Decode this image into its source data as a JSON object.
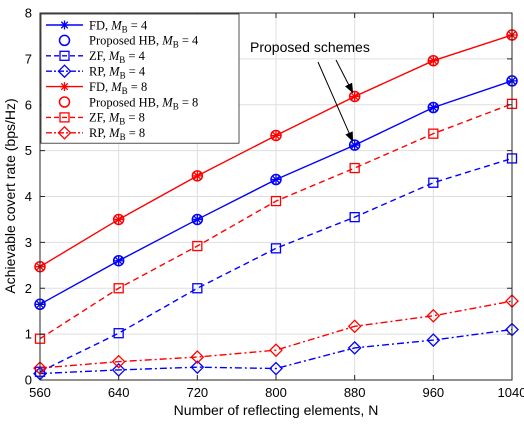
{
  "chart_data": {
    "type": "line",
    "title": "",
    "xlabel": "Number of reflecting elements, N",
    "ylabel": "Achievable covert rate (bps/Hz)",
    "x": [
      560,
      640,
      720,
      800,
      880,
      960,
      1040
    ],
    "x_ticks": [
      "560",
      "640",
      "720",
      "800",
      "880",
      "960",
      "1040"
    ],
    "y_ticks": [
      "0",
      "1",
      "2",
      "3",
      "4",
      "5",
      "6",
      "7",
      "8"
    ],
    "xlim": [
      560,
      1040
    ],
    "ylim": [
      0,
      8
    ],
    "grid": true,
    "legend_position": "top-left",
    "series": [
      {
        "name": "FD, M_B = 4",
        "color": "#0000ff",
        "line": "solid",
        "marker": "star",
        "values": [
          1.65,
          2.6,
          3.5,
          4.37,
          5.12,
          5.94,
          6.52
        ]
      },
      {
        "name": "Proposed HB, M_B = 4",
        "color": "#0000ff",
        "line": "none",
        "marker": "circle",
        "values": [
          1.65,
          2.6,
          3.5,
          4.37,
          5.12,
          5.94,
          6.52
        ]
      },
      {
        "name": "ZF, M_B = 4",
        "color": "#0000ff",
        "line": "dashed",
        "marker": "square",
        "values": [
          0.18,
          1.02,
          2.0,
          2.87,
          3.55,
          4.3,
          4.83
        ]
      },
      {
        "name": "RP, M_B = 4",
        "color": "#0000ff",
        "line": "dashdot",
        "marker": "diamond",
        "values": [
          0.14,
          0.22,
          0.28,
          0.25,
          0.7,
          0.87,
          1.1
        ]
      },
      {
        "name": "FD, M_B = 8",
        "color": "#ff0000",
        "line": "solid",
        "marker": "star",
        "values": [
          2.47,
          3.5,
          4.45,
          5.33,
          6.18,
          6.96,
          7.52
        ]
      },
      {
        "name": "Proposed HB, M_B = 8",
        "color": "#ff0000",
        "line": "none",
        "marker": "circle",
        "values": [
          2.47,
          3.5,
          4.45,
          5.33,
          6.18,
          6.96,
          7.52
        ]
      },
      {
        "name": "ZF, M_B = 8",
        "color": "#ff0000",
        "line": "dashed",
        "marker": "square",
        "values": [
          0.9,
          2.0,
          2.92,
          3.9,
          4.62,
          5.37,
          6.02
        ]
      },
      {
        "name": "RP, M_B = 8",
        "color": "#ff0000",
        "line": "dashdot",
        "marker": "diamond",
        "values": [
          0.26,
          0.4,
          0.5,
          0.65,
          1.17,
          1.4,
          1.72
        ]
      }
    ],
    "legend": [
      {
        "prefix": "FD, ",
        "m": "M",
        "sub": "B",
        "suffix": " = 4"
      },
      {
        "prefix": "Proposed HB, ",
        "m": "M",
        "sub": "B",
        "suffix": " = 4"
      },
      {
        "prefix": "ZF, ",
        "m": "M",
        "sub": "B",
        "suffix": " = 4"
      },
      {
        "prefix": "RP, ",
        "m": "M",
        "sub": "B",
        "suffix": " = 4"
      },
      {
        "prefix": "FD, ",
        "m": "M",
        "sub": "B",
        "suffix": " = 8"
      },
      {
        "prefix": "Proposed HB, ",
        "m": "M",
        "sub": "B",
        "suffix": " = 8"
      },
      {
        "prefix": "ZF, ",
        "m": "M",
        "sub": "B",
        "suffix": " = 8"
      },
      {
        "prefix": "RP, ",
        "m": "M",
        "sub": "B",
        "suffix": " = 8"
      }
    ],
    "annotation": {
      "text": "Proposed schemes",
      "arrows_to": [
        {
          "x": 880,
          "y": 6.18
        },
        {
          "x": 880,
          "y": 5.12
        }
      ]
    }
  }
}
